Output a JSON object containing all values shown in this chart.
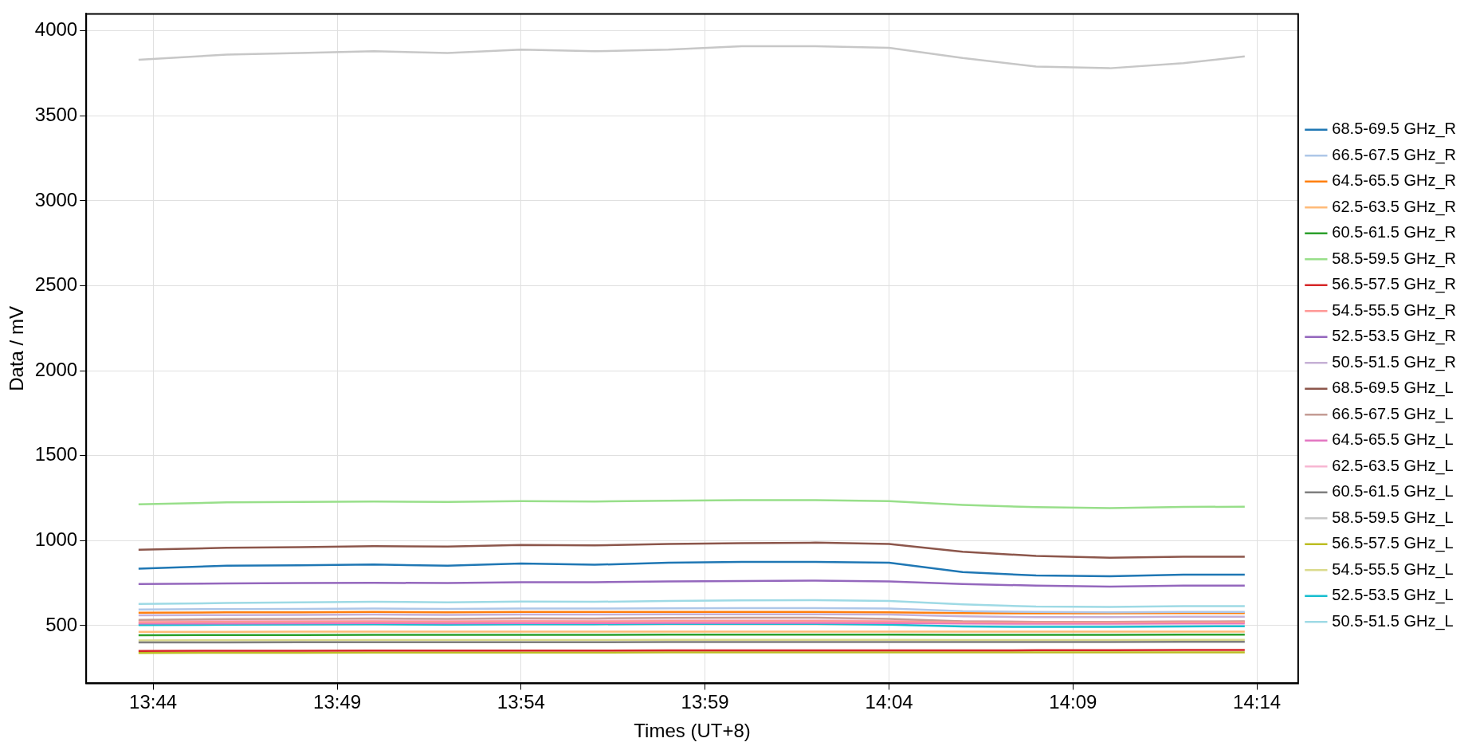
{
  "chart_data": {
    "type": "line",
    "xlabel": "Times (UT+8)",
    "ylabel": "Data / mV",
    "x": [
      13.7267,
      13.7667,
      13.8,
      13.8333,
      13.8667,
      13.9,
      13.9333,
      13.9667,
      14.0,
      14.0333,
      14.0667,
      14.1,
      14.1333,
      14.1667,
      14.2,
      14.2278
    ],
    "xlim": [
      13.703,
      14.252
    ],
    "ylim": [
      160,
      4100
    ],
    "xticks": [
      {
        "value": 13.7333,
        "label": "13:44"
      },
      {
        "value": 13.8167,
        "label": "13:49"
      },
      {
        "value": 13.9,
        "label": "13:54"
      },
      {
        "value": 13.9833,
        "label": "13:59"
      },
      {
        "value": 14.0667,
        "label": "14:04"
      },
      {
        "value": 14.15,
        "label": "14:09"
      },
      {
        "value": 14.2333,
        "label": "14:14"
      }
    ],
    "yticks": [
      500,
      1000,
      1500,
      2000,
      2500,
      3000,
      3500,
      4000
    ],
    "grid": true,
    "legend": "right",
    "series": [
      {
        "name": "68.5-69.5 GHz_R",
        "color": "#1f77b4",
        "values": [
          835,
          852,
          855,
          860,
          852,
          865,
          858,
          870,
          875,
          875,
          870,
          815,
          795,
          790,
          800,
          800
        ]
      },
      {
        "name": "66.5-67.5 GHz_R",
        "color": "#aec7e8",
        "values": [
          595,
          597,
          598,
          600,
          598,
          600,
          600,
          602,
          603,
          603,
          600,
          585,
          580,
          578,
          580,
          580
        ]
      },
      {
        "name": "64.5-65.5 GHz_R",
        "color": "#ff7f0e",
        "values": [
          576,
          578,
          578,
          580,
          578,
          580,
          580,
          580,
          580,
          580,
          578,
          574,
          572,
          572,
          574,
          574
        ]
      },
      {
        "name": "62.5-63.5 GHz_R",
        "color": "#ffbb78",
        "values": [
          463,
          463,
          464,
          464,
          464,
          465,
          465,
          465,
          465,
          465,
          465,
          464,
          464,
          464,
          465,
          465
        ]
      },
      {
        "name": "60.5-61.5 GHz_R",
        "color": "#2ca02c",
        "values": [
          443,
          445,
          445,
          446,
          446,
          446,
          446,
          447,
          447,
          447,
          447,
          446,
          446,
          446,
          447,
          447
        ]
      },
      {
        "name": "58.5-59.5 GHz_R",
        "color": "#98df8a",
        "values": [
          1214,
          1225,
          1228,
          1230,
          1228,
          1232,
          1230,
          1235,
          1238,
          1238,
          1232,
          1210,
          1197,
          1192,
          1198,
          1200
        ]
      },
      {
        "name": "56.5-57.5 GHz_R",
        "color": "#d62728",
        "values": [
          351,
          352,
          352,
          353,
          353,
          353,
          353,
          354,
          354,
          354,
          354,
          354,
          355,
          355,
          356,
          356
        ]
      },
      {
        "name": "54.5-55.5 GHz_R",
        "color": "#ff9896",
        "values": [
          520,
          522,
          523,
          524,
          523,
          525,
          524,
          526,
          527,
          527,
          524,
          520,
          518,
          518,
          520,
          520
        ]
      },
      {
        "name": "52.5-53.5 GHz_R",
        "color": "#9467bd",
        "values": [
          745,
          748,
          750,
          752,
          750,
          755,
          755,
          760,
          762,
          765,
          760,
          745,
          735,
          730,
          735,
          735
        ]
      },
      {
        "name": "50.5-51.5 GHz_R",
        "color": "#c5b0d5",
        "values": [
          560,
          562,
          563,
          565,
          563,
          565,
          565,
          566,
          567,
          567,
          565,
          555,
          550,
          550,
          552,
          552
        ]
      },
      {
        "name": "68.5-69.5 GHz_L",
        "color": "#8c564b",
        "values": [
          946,
          958,
          962,
          968,
          965,
          975,
          972,
          980,
          985,
          988,
          980,
          935,
          910,
          900,
          905,
          905
        ]
      },
      {
        "name": "66.5-67.5 GHz_L",
        "color": "#c49c94",
        "values": [
          534,
          538,
          540,
          542,
          540,
          543,
          542,
          545,
          546,
          546,
          540,
          525,
          522,
          522,
          524,
          525
        ]
      },
      {
        "name": "64.5-65.5 GHz_L",
        "color": "#e377c2",
        "values": [
          512,
          513,
          514,
          515,
          514,
          515,
          515,
          516,
          516,
          516,
          515,
          512,
          511,
          511,
          512,
          512
        ]
      },
      {
        "name": "62.5-63.5 GHz_L",
        "color": "#f7b6d2",
        "values": [
          526,
          527,
          528,
          529,
          528,
          529,
          529,
          530,
          530,
          530,
          528,
          524,
          522,
          522,
          523,
          523
        ]
      },
      {
        "name": "60.5-61.5 GHz_L",
        "color": "#7f7f7f",
        "values": [
          401,
          401,
          402,
          402,
          402,
          402,
          402,
          403,
          403,
          403,
          403,
          403,
          404,
          404,
          405,
          405
        ]
      },
      {
        "name": "58.5-59.5 GHz_L",
        "color": "#c7c7c7",
        "values": [
          3830,
          3860,
          3870,
          3880,
          3870,
          3890,
          3880,
          3890,
          3910,
          3910,
          3900,
          3840,
          3790,
          3780,
          3810,
          3850
        ]
      },
      {
        "name": "56.5-57.5 GHz_L",
        "color": "#bcbd22",
        "values": [
          339,
          340,
          340,
          341,
          341,
          341,
          341,
          342,
          342,
          342,
          342,
          342,
          342,
          343,
          343,
          343
        ]
      },
      {
        "name": "54.5-55.5 GHz_L",
        "color": "#dbdb8d",
        "values": [
          413,
          414,
          414,
          415,
          415,
          415,
          415,
          416,
          416,
          416,
          416,
          415,
          415,
          415,
          416,
          416
        ]
      },
      {
        "name": "52.5-53.5 GHz_L",
        "color": "#17becf",
        "values": [
          503,
          505,
          507,
          508,
          506,
          508,
          508,
          510,
          510,
          510,
          505,
          495,
          492,
          492,
          495,
          496
        ]
      },
      {
        "name": "50.5-51.5 GHz_L",
        "color": "#9edae5",
        "values": [
          627,
          633,
          637,
          640,
          637,
          642,
          640,
          645,
          648,
          650,
          645,
          625,
          612,
          610,
          615,
          615
        ]
      }
    ]
  }
}
